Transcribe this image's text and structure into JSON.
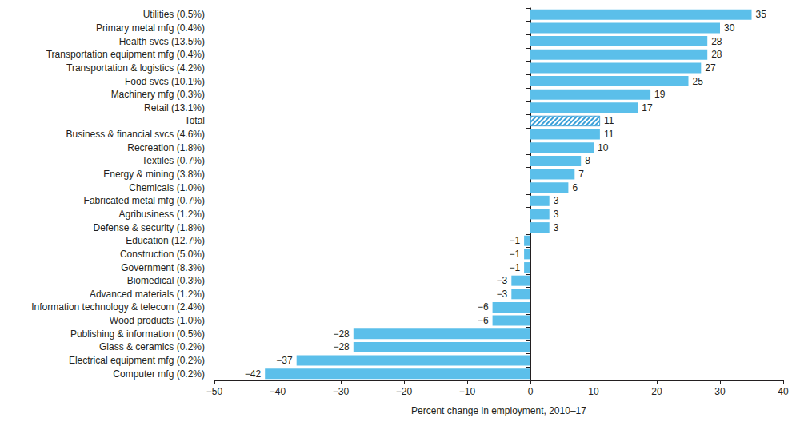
{
  "chart_data": {
    "type": "bar",
    "orientation": "horizontal",
    "x_label": "Percent change in employment, 2010–17",
    "categories": [
      "Utilities (0.5%)",
      "Primary metal mfg (0.4%)",
      "Health svcs (13.5%)",
      "Transportation equipment mfg (0.4%)",
      "Transportation & logistics (4.2%)",
      "Food svcs (10.1%)",
      "Machinery mfg (0.3%)",
      "Retail (13.1%)",
      "Total",
      "Business & financial svcs (4.6%)",
      "Recreation (1.8%)",
      "Textiles (0.7%)",
      "Energy & mining (3.8%)",
      "Chemicals (1.0%)",
      "Fabricated metal mfg (0.7%)",
      "Agribusiness (1.2%)",
      "Defense & security (1.8%)",
      "Education (12.7%)",
      "Construction (5.0%)",
      "Government (8.3%)",
      "Biomedical (0.3%)",
      "Advanced materials (1.2%)",
      "Information technology & telecom (2.4%)",
      "Wood products (1.0%)",
      "Publishing & information (0.5%)",
      "Glass & ceramics (0.2%)",
      "Electrical equipment mfg (0.2%)",
      "Computer mfg (0.2%)"
    ],
    "values": [
      35,
      30,
      28,
      28,
      27,
      25,
      19,
      17,
      11,
      11,
      10,
      8,
      7,
      6,
      3,
      3,
      3,
      -1,
      -1,
      -1,
      -3,
      -3,
      -6,
      -6,
      -28,
      -28,
      -37,
      -42
    ],
    "value_labels": [
      "35",
      "30",
      "28",
      "28",
      "27",
      "25",
      "19",
      "17",
      "11",
      "11",
      "10",
      "8",
      "7",
      "6",
      "3",
      "3",
      "3",
      "−1",
      "−1",
      "−1",
      "−3",
      "−3",
      "−6",
      "−6",
      "−28",
      "−28",
      "−37",
      "−42"
    ],
    "data_labels": true,
    "color": "#5bbfea",
    "colors": [
      "#5bbfea",
      "#5bbfea",
      "#5bbfea",
      "#5bbfea",
      "#5bbfea",
      "#5bbfea",
      "#5bbfea",
      "#5bbfea",
      "#3a9fd8",
      "#5bbfea",
      "#5bbfea",
      "#5bbfea",
      "#5bbfea",
      "#5bbfea",
      "#5bbfea",
      "#5bbfea",
      "#5bbfea",
      "#5bbfea",
      "#5bbfea",
      "#5bbfea",
      "#5bbfea",
      "#5bbfea",
      "#5bbfea",
      "#5bbfea",
      "#5bbfea",
      "#5bbfea",
      "#5bbfea",
      "#5bbfea"
    ],
    "xlim": [
      -50,
      40
    ],
    "xticks": [
      {
        "value": -50,
        "label": "−50"
      },
      {
        "value": -40,
        "label": "−40"
      },
      {
        "value": -30,
        "label": "−30"
      },
      {
        "value": -20,
        "label": "−20"
      },
      {
        "value": -10,
        "label": "−10"
      },
      0,
      10,
      20,
      30,
      40
    ],
    "grid": false
  }
}
